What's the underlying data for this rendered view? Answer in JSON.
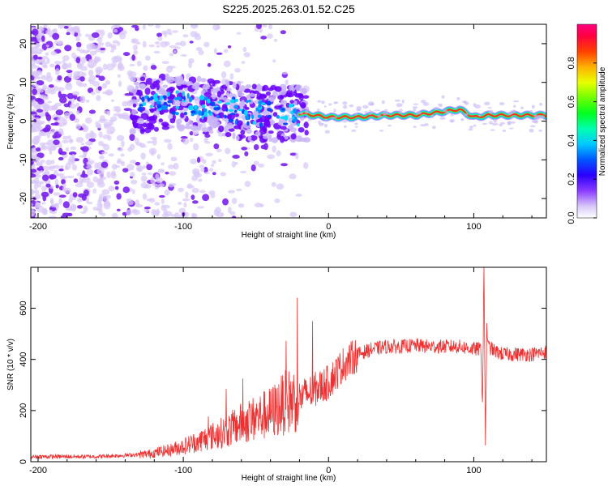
{
  "title": "S225.2025.263.01.52.C25",
  "colors": {
    "snr_line": "#ee3030",
    "spectrogram_low": "#d8c8f8",
    "spectrogram_mid": "#6a00ff",
    "spectrogram_high": "#ff0040"
  },
  "chart_data": [
    {
      "type": "heatmap",
      "name": "spectrogram",
      "xlabel": "Height of straight line (km)",
      "ylabel": "Frequency (Hz)",
      "xlim": [
        -205,
        150
      ],
      "ylim": [
        -25,
        25
      ],
      "xticks": [
        -200,
        -100,
        0,
        100
      ],
      "xtick_labels": [
        "-200",
        "-100",
        "0",
        "100"
      ],
      "yticks": [
        -20,
        -10,
        0,
        10,
        20
      ],
      "ytick_labels": [
        "-20",
        "-10",
        "0",
        "10",
        "20"
      ],
      "colorbar": {
        "label": "Normalized spectral amplitude",
        "range": [
          0,
          1
        ],
        "ticks": [
          0.0,
          0.2,
          0.4,
          0.6,
          0.8
        ],
        "tick_labels": [
          "0.0",
          "0.2",
          "0.4",
          "0.6",
          "0.8"
        ]
      },
      "signal_band": {
        "description": "narrow high-amplitude band near 1-2 Hz for heights above -20 km; scattered noise below",
        "ridge": [
          {
            "x": -130,
            "y": 4
          },
          {
            "x": -110,
            "y": 5
          },
          {
            "x": -90,
            "y": 4
          },
          {
            "x": -70,
            "y": 3
          },
          {
            "x": -50,
            "y": 2
          },
          {
            "x": -30,
            "y": 2
          },
          {
            "x": -20,
            "y": 2
          },
          {
            "x": 0,
            "y": 1
          },
          {
            "x": 20,
            "y": 1
          },
          {
            "x": 40,
            "y": 1.5
          },
          {
            "x": 60,
            "y": 1.5
          },
          {
            "x": 80,
            "y": 2.5
          },
          {
            "x": 90,
            "y": 3
          },
          {
            "x": 100,
            "y": 1
          },
          {
            "x": 110,
            "y": 1.5
          },
          {
            "x": 150,
            "y": 1.5
          }
        ]
      }
    },
    {
      "type": "line",
      "name": "snr",
      "xlabel": "Height of straight line (km)",
      "ylabel": "SNR (10 * v/v)",
      "xlim": [
        -205,
        150
      ],
      "ylim": [
        0,
        760
      ],
      "xticks": [
        -200,
        -100,
        0,
        100
      ],
      "xtick_labels": [
        "-200",
        "-100",
        "0",
        "100"
      ],
      "yticks": [
        0,
        200,
        400,
        600
      ],
      "ytick_labels": [
        "0",
        "200",
        "400",
        "600"
      ],
      "series": [
        {
          "name": "SNR",
          "x": [
            -205,
            -180,
            -160,
            -140,
            -125,
            -110,
            -100,
            -90,
            -80,
            -70,
            -60,
            -50,
            -40,
            -30,
            -20,
            -10,
            0,
            10,
            20,
            30,
            40,
            50,
            60,
            70,
            80,
            90,
            100,
            105,
            106,
            107,
            108,
            109,
            110,
            115,
            120,
            130,
            140,
            150
          ],
          "y": [
            20,
            20,
            20,
            25,
            30,
            45,
            60,
            80,
            100,
            120,
            150,
            170,
            190,
            230,
            250,
            280,
            310,
            380,
            420,
            440,
            450,
            450,
            455,
            450,
            450,
            450,
            440,
            440,
            220,
            760,
            80,
            520,
            450,
            430,
            420,
            420,
            420,
            430
          ]
        }
      ]
    }
  ]
}
